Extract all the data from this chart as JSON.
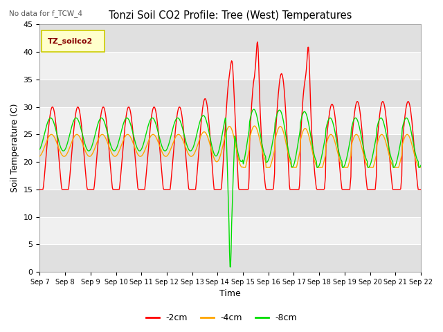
{
  "title": "Tonzi Soil CO2 Profile: Tree (West) Temperatures",
  "no_data_text": "No data for f_TCW_4",
  "legend_box_text": "TZ_soilco2",
  "xlabel": "Time",
  "ylabel": "Soil Temperature (C)",
  "ylim": [
    0,
    45
  ],
  "yticks": [
    0,
    5,
    10,
    15,
    20,
    25,
    30,
    35,
    40,
    45
  ],
  "colors": {
    "red": "#FF0000",
    "orange": "#FFA500",
    "green": "#00DD00"
  },
  "legend_labels": [
    "-2cm",
    "-4cm",
    "-8cm"
  ],
  "bg_color": "#FFFFFF",
  "stripe_light": "#F0F0F0",
  "stripe_dark": "#E0E0E0"
}
